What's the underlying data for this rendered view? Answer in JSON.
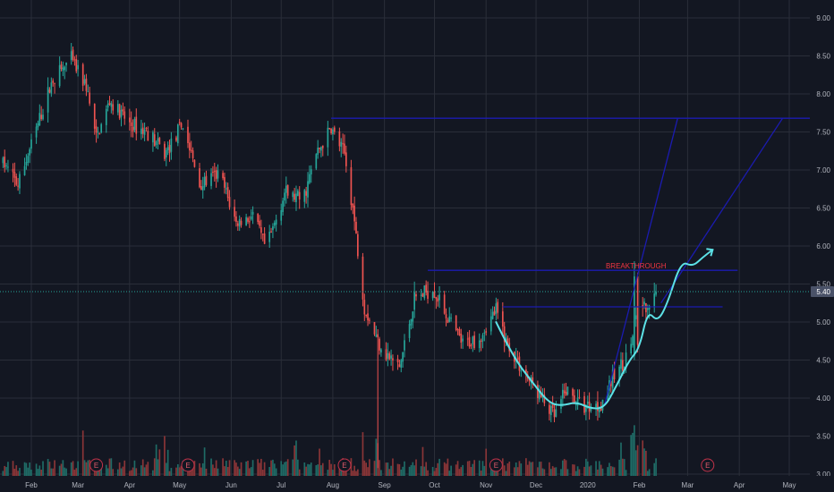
{
  "chart_data": {
    "type": "candlestick",
    "title": "",
    "x_axis": {
      "range": [
        "2019-01-15",
        "2020-05-20"
      ],
      "tick_labels": [
        {
          "date": "2019-02-01",
          "label": "Feb"
        },
        {
          "date": "2019-03-01",
          "label": "Mar"
        },
        {
          "date": "2019-04-01",
          "label": "Apr"
        },
        {
          "date": "2019-05-01",
          "label": "May"
        },
        {
          "date": "2019-06-01",
          "label": "Jun"
        },
        {
          "date": "2019-07-01",
          "label": "Jul"
        },
        {
          "date": "2019-08-01",
          "label": "Aug"
        },
        {
          "date": "2019-09-01",
          "label": "Sep"
        },
        {
          "date": "2019-10-01",
          "label": "Oct"
        },
        {
          "date": "2019-11-01",
          "label": "Nov"
        },
        {
          "date": "2019-12-01",
          "label": "Dec"
        },
        {
          "date": "2020-01-01",
          "label": "2020"
        },
        {
          "date": "2020-02-01",
          "label": "Feb"
        },
        {
          "date": "2020-03-01",
          "label": "Mar"
        },
        {
          "date": "2020-04-01",
          "label": "Apr"
        },
        {
          "date": "2020-05-01",
          "label": "May"
        }
      ]
    },
    "y_axis": {
      "range": [
        3.0,
        9.25
      ],
      "ticks": [
        "3.00",
        "3.50",
        "4.00",
        "4.50",
        "5.00",
        "5.50",
        "6.00",
        "6.50",
        "7.00",
        "7.50",
        "8.00",
        "8.50",
        "9.00"
      ],
      "position": "right"
    },
    "grid": true,
    "last_price": {
      "value": 5.4,
      "label": "5.40"
    },
    "price_path": [
      [
        "2019-01-15",
        7.1
      ],
      [
        "2019-01-24",
        6.8
      ],
      [
        "2019-02-05",
        7.6
      ],
      [
        "2019-02-14",
        8.2
      ],
      [
        "2019-02-25",
        8.45
      ],
      [
        "2019-03-06",
        8.1
      ],
      [
        "2019-03-12",
        7.4
      ],
      [
        "2019-03-20",
        7.9
      ],
      [
        "2019-04-01",
        7.6
      ],
      [
        "2019-04-12",
        7.5
      ],
      [
        "2019-04-22",
        7.2
      ],
      [
        "2019-05-03",
        7.6
      ],
      [
        "2019-05-13",
        6.8
      ],
      [
        "2019-05-25",
        6.95
      ],
      [
        "2019-06-04",
        6.3
      ],
      [
        "2019-06-14",
        6.4
      ],
      [
        "2019-06-22",
        5.95
      ],
      [
        "2019-07-03",
        6.7
      ],
      [
        "2019-07-14",
        6.6
      ],
      [
        "2019-07-22",
        7.2
      ],
      [
        "2019-07-31",
        7.55
      ],
      [
        "2019-08-08",
        7.2
      ],
      [
        "2019-08-13",
        6.5
      ],
      [
        "2019-08-20",
        5.2
      ],
      [
        "2019-08-27",
        4.8
      ],
      [
        "2019-09-03",
        4.55
      ],
      [
        "2019-09-10",
        4.4
      ],
      [
        "2019-09-19",
        5.3
      ],
      [
        "2019-09-30",
        5.45
      ],
      [
        "2019-10-08",
        5.1
      ],
      [
        "2019-10-18",
        4.7
      ],
      [
        "2019-10-28",
        4.8
      ],
      [
        "2019-11-07",
        5.15
      ],
      [
        "2019-11-14",
        4.7
      ],
      [
        "2019-11-22",
        4.4
      ],
      [
        "2019-12-04",
        4.0
      ],
      [
        "2019-12-12",
        3.75
      ],
      [
        "2019-12-19",
        4.1
      ],
      [
        "2019-12-28",
        3.9
      ],
      [
        "2020-01-08",
        3.9
      ],
      [
        "2020-01-17",
        4.3
      ],
      [
        "2020-01-26",
        4.6
      ],
      [
        "2020-02-01",
        5.3
      ],
      [
        "2020-02-06",
        5.1
      ],
      [
        "2020-02-11",
        5.35
      ]
    ],
    "volume_range": [
      0,
      9
    ],
    "earnings_markers": [
      "2019-03-12",
      "2019-05-06",
      "2019-08-08",
      "2019-11-07",
      "2020-03-13"
    ],
    "earnings_label": "E",
    "drawings": {
      "horizontal_levels": [
        {
          "y": 7.68,
          "x_from": "2019-07-31",
          "x_to": "2020-05-20"
        },
        {
          "y": 5.68,
          "x_from": "2019-09-27",
          "x_to": "2020-03-31"
        },
        {
          "y": 5.2,
          "x_from": "2019-11-11",
          "x_to": "2020-03-22"
        }
      ],
      "trend_lines": [
        {
          "from": [
            "2020-01-11",
            3.9
          ],
          "to": [
            "2020-02-24",
            7.68
          ]
        },
        {
          "from": [
            "2020-02-14",
            5.25
          ],
          "to": [
            "2020-04-27",
            7.68
          ]
        }
      ],
      "annotation": {
        "text": "BREAKTHROUGH",
        "date": "2020-01-30",
        "y": 5.68
      },
      "forecast_path": [
        [
          "2019-11-07",
          5.0
        ],
        [
          "2019-11-17",
          4.55
        ],
        [
          "2019-11-29",
          4.2
        ],
        [
          "2019-12-09",
          3.93
        ],
        [
          "2019-12-17",
          3.9
        ],
        [
          "2019-12-25",
          3.95
        ],
        [
          "2020-01-03",
          3.86
        ],
        [
          "2020-01-11",
          3.87
        ],
        [
          "2020-01-18",
          4.15
        ],
        [
          "2020-01-26",
          4.5
        ],
        [
          "2020-02-01",
          4.65
        ],
        [
          "2020-02-06",
          5.15
        ],
        [
          "2020-02-12",
          5.0
        ],
        [
          "2020-02-18",
          5.25
        ],
        [
          "2020-02-26",
          5.8
        ],
        [
          "2020-03-04",
          5.73
        ],
        [
          "2020-03-10",
          5.85
        ],
        [
          "2020-03-16",
          5.95
        ]
      ]
    }
  },
  "colors": {
    "background": "#131722",
    "grid": "#2a2e39",
    "up": "#26a69a",
    "down": "#ef5350",
    "volume_up": "#1f6b66",
    "volume_down": "#8a3537",
    "drawing": "#1b1bb0",
    "forecast": "#5ce1e6",
    "annotation": "#f23645",
    "axis_text": "#b2b5be",
    "price_label_bg": "#4a5268"
  }
}
